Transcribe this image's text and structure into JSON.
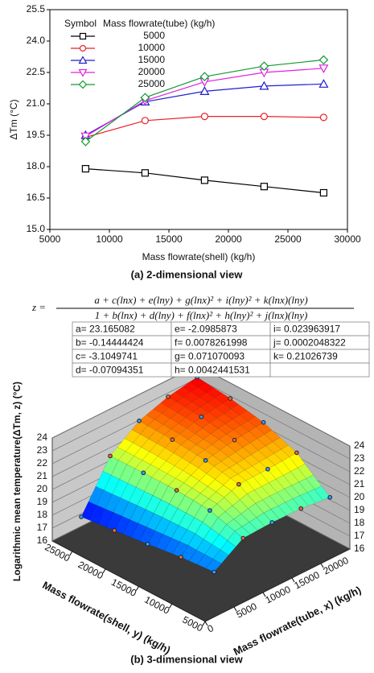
{
  "chart_data": [
    {
      "type": "line",
      "caption": "(a)  2-dimensional view",
      "xlabel": "Mass flowrate(shell) (kg/h)",
      "ylabel": "ΔTm (°C)",
      "legend_title": [
        "Symbol",
        "Mass flowrate(tube) (kg/h)"
      ],
      "legend": "upper left",
      "x": [
        8000,
        13000,
        18000,
        23000,
        28000
      ],
      "xlim": [
        5000,
        30000
      ],
      "xticks": [
        5000,
        10000,
        15000,
        20000,
        25000,
        30000
      ],
      "ylim": [
        15,
        25.5
      ],
      "yticks": [
        {
          "value": 15,
          "label": "15.0"
        },
        16.5,
        {
          "value": 18,
          "label": "18.0"
        },
        19.5,
        {
          "value": 21,
          "label": "21.0"
        },
        22.5,
        {
          "value": 24,
          "label": "24.0"
        },
        25.5
      ],
      "series": [
        {
          "name": "5000",
          "color": "#000000",
          "marker": "square",
          "values": [
            17.9,
            17.7,
            17.35,
            17.05,
            16.75
          ]
        },
        {
          "name": "10000",
          "color": "#e8202a",
          "marker": "circle",
          "values": [
            19.4,
            20.2,
            20.4,
            20.4,
            20.35
          ]
        },
        {
          "name": "15000",
          "color": "#1f1fd0",
          "marker": "triangle",
          "values": [
            19.5,
            21.1,
            21.6,
            21.85,
            21.95
          ]
        },
        {
          "name": "20000",
          "color": "#e020e0",
          "marker": "triangle-down",
          "values": [
            19.45,
            21.15,
            22.05,
            22.5,
            22.7
          ]
        },
        {
          "name": "25000",
          "color": "#109a30",
          "marker": "diamond",
          "values": [
            19.2,
            21.3,
            22.3,
            22.8,
            23.1
          ]
        }
      ]
    },
    {
      "type": "surface3d",
      "caption": "(b)  3-dimensional view",
      "xlabel": "Mass flowrate(tube, x) (kg/h)",
      "ylabel": "Mass flowrate(shell, y) (kg/h)",
      "zlabel": "Logarithmic mean temperature(ΔTm, z) (°C)",
      "x": [
        5000,
        10000,
        15000,
        20000,
        25000
      ],
      "y": [
        8000,
        13000,
        18000,
        23000,
        28000
      ],
      "z": [
        [
          17.9,
          17.7,
          17.35,
          17.05,
          16.75
        ],
        [
          19.4,
          20.2,
          20.4,
          20.4,
          20.35
        ],
        [
          19.5,
          21.1,
          21.6,
          21.85,
          21.95
        ],
        [
          19.45,
          21.15,
          22.05,
          22.5,
          22.7
        ],
        [
          19.2,
          21.3,
          22.3,
          22.8,
          23.1
        ]
      ],
      "xlim": [
        0,
        25000
      ],
      "xticks": [
        0,
        5000,
        10000,
        15000,
        20000
      ],
      "ylim": [
        5000,
        28000
      ],
      "yticks": [
        5000,
        10000,
        15000,
        20000,
        25000
      ],
      "zlim": [
        16,
        24
      ],
      "zticks": [
        16,
        17,
        18,
        19,
        20,
        21,
        22,
        23,
        24
      ],
      "colormap": "jet"
    }
  ],
  "equation": {
    "lhs": "z =",
    "numerator": "a + c(lnx) + e(lny) + g(lnx)² + i(lny)² + k(lnx)(lny)",
    "denominator": "1 + b(lnx) + d(lny) + f(lnx)² + h(lny)² + j(lnx)(lny)"
  },
  "coefficients": {
    "rows": [
      [
        "a= 23.165082",
        "e= -2.0985873",
        "i= 0.023963917"
      ],
      [
        "b= -0.14444424",
        "f= 0.0078261998",
        "j= 0.0002048322"
      ],
      [
        "c= -3.1049741",
        "g= 0.071070093",
        "k= 0.21026739"
      ],
      [
        "d= -0.07094351",
        "h= 0.0042441531"
      ]
    ]
  }
}
